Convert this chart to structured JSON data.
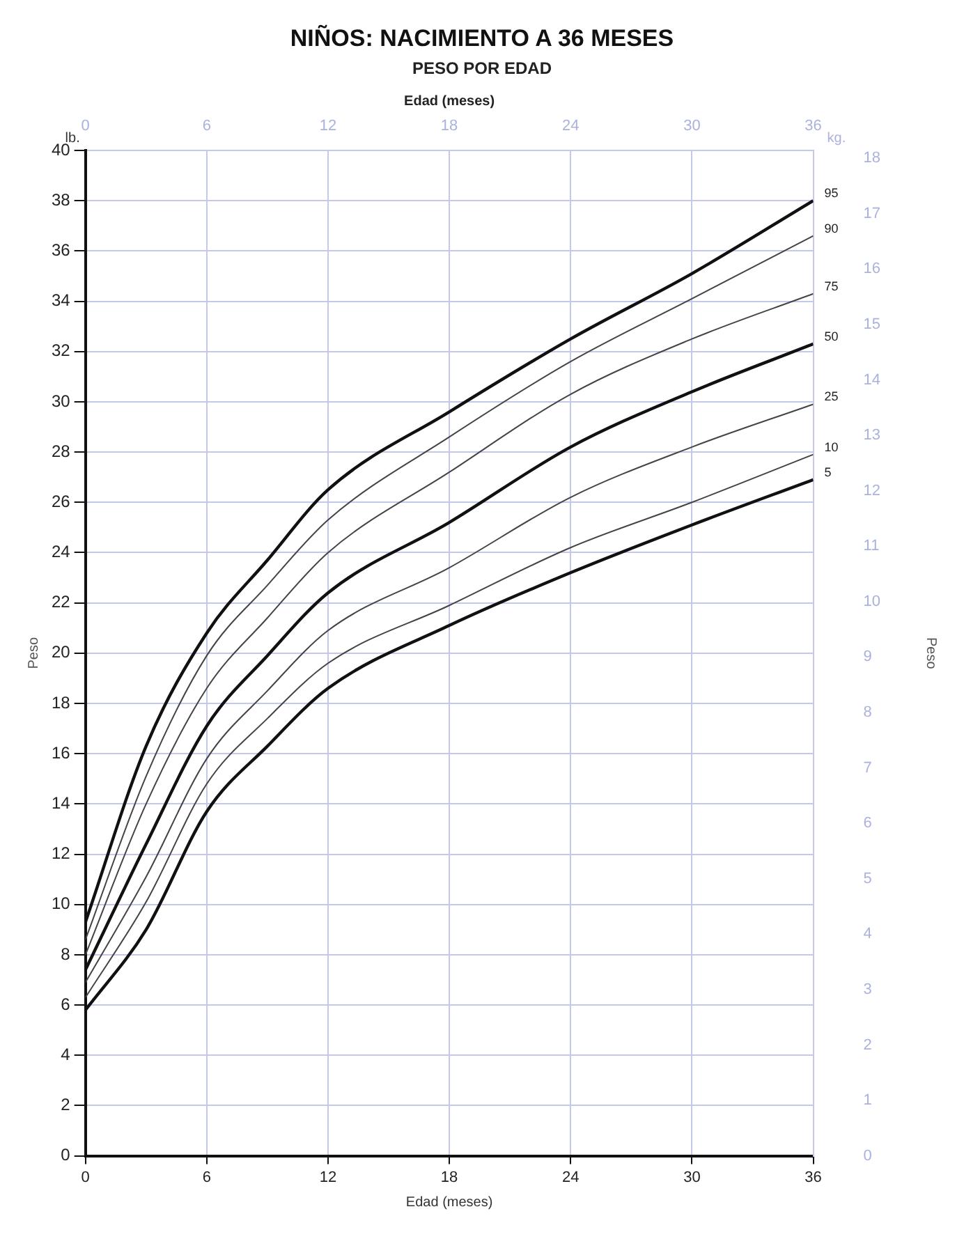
{
  "chart_data": {
    "type": "line",
    "title": "NIÑOS: NACIMIENTO A 36 MESES",
    "subtitle": "PESO POR EDAD",
    "xlabel": "Edad (meses)",
    "x2label": "Edad (meses)",
    "ylabel": "Peso",
    "y2label": "Peso",
    "annotations": [
      "lb.",
      "kg."
    ],
    "x": [
      0,
      3,
      6,
      9,
      12,
      18,
      24,
      30,
      36
    ],
    "series": [
      {
        "name": "95",
        "color": "#111111",
        "values": [
          9.3,
          16.3,
          20.8,
          23.7,
          26.5,
          29.6,
          32.5,
          35.1,
          38
        ]
      },
      {
        "name": "90",
        "color": "#444444",
        "values": [
          8.6,
          15.1,
          19.9,
          22.7,
          25.3,
          28.6,
          31.6,
          34.1,
          36.6
        ]
      },
      {
        "name": "75",
        "color": "#444444",
        "values": [
          8,
          14,
          18.6,
          21.4,
          24,
          27.2,
          30.3,
          32.5,
          34.3
        ]
      },
      {
        "name": "50",
        "color": "#111111",
        "values": [
          7.4,
          12.4,
          17.1,
          19.9,
          22.4,
          25.2,
          28.2,
          30.4,
          32.3
        ]
      },
      {
        "name": "25",
        "color": "#444444",
        "values": [
          6.9,
          11.1,
          15.8,
          18.5,
          20.9,
          23.4,
          26.2,
          28.2,
          29.9
        ]
      },
      {
        "name": "10",
        "color": "#444444",
        "values": [
          6.3,
          10.1,
          14.8,
          17.4,
          19.6,
          21.9,
          24.2,
          26,
          27.9
        ]
      },
      {
        "name": "5",
        "color": "#111111",
        "values": [
          5.8,
          9,
          13.7,
          16.3,
          18.6,
          21.1,
          23.2,
          25.1,
          26.9
        ]
      }
    ],
    "xlim": [
      0,
      36
    ],
    "xticks": [
      0,
      6,
      12,
      18,
      24,
      30,
      36
    ],
    "x2lim": [
      0,
      36
    ],
    "x2ticks": [
      0,
      6,
      12,
      18,
      24,
      30,
      36
    ],
    "ylim": [
      0,
      40
    ],
    "yticks": [
      0,
      2,
      4,
      6,
      8,
      10,
      12,
      14,
      16,
      18,
      20,
      22,
      24,
      26,
      28,
      30,
      32,
      34,
      36,
      38,
      40
    ],
    "y2lim": [
      0,
      18.14
    ],
    "y2ticks": [
      0,
      1,
      2,
      3,
      4,
      5,
      6,
      7,
      8,
      9,
      10,
      11,
      12,
      13,
      14,
      15,
      16,
      17,
      18
    ],
    "grid": true,
    "legend": false,
    "marker": "none",
    "line_style": "solid"
  }
}
